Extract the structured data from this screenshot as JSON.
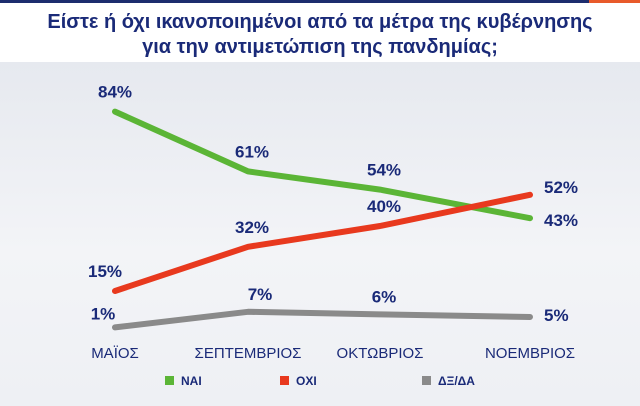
{
  "title_lines": [
    "Είστε ή όχι ικανοποιημένοι από τα μέτρα της κυβέρνησης",
    "για την αντιμετώπιση της πανδημίας;"
  ],
  "chart_data": {
    "type": "line",
    "categories": [
      "ΜΑΪΟΣ",
      "ΣΕΠΤΕΜΒΡΙΟΣ",
      "ΟΚΤΩΒΡΙΟΣ",
      "ΝΟΕΜΒΡΙΟΣ"
    ],
    "series": [
      {
        "name": "ΝΑΙ",
        "color": "#5bb536",
        "values": [
          84,
          61,
          54,
          43
        ],
        "labels": [
          "84%",
          "61%",
          "54%",
          "43%"
        ]
      },
      {
        "name": "ΟΧΙ",
        "color": "#e8391e",
        "values": [
          15,
          32,
          40,
          52
        ],
        "labels": [
          "15%",
          "32%",
          "40%",
          "52%"
        ]
      },
      {
        "name": "ΔΞ/ΔΑ",
        "color": "#8a8a8a",
        "values": [
          1,
          7,
          6,
          5
        ],
        "labels": [
          "1%",
          "7%",
          "6%",
          "5%"
        ]
      }
    ],
    "ylim": [
      0,
      100
    ],
    "legend_position": "bottom",
    "grid": false
  }
}
